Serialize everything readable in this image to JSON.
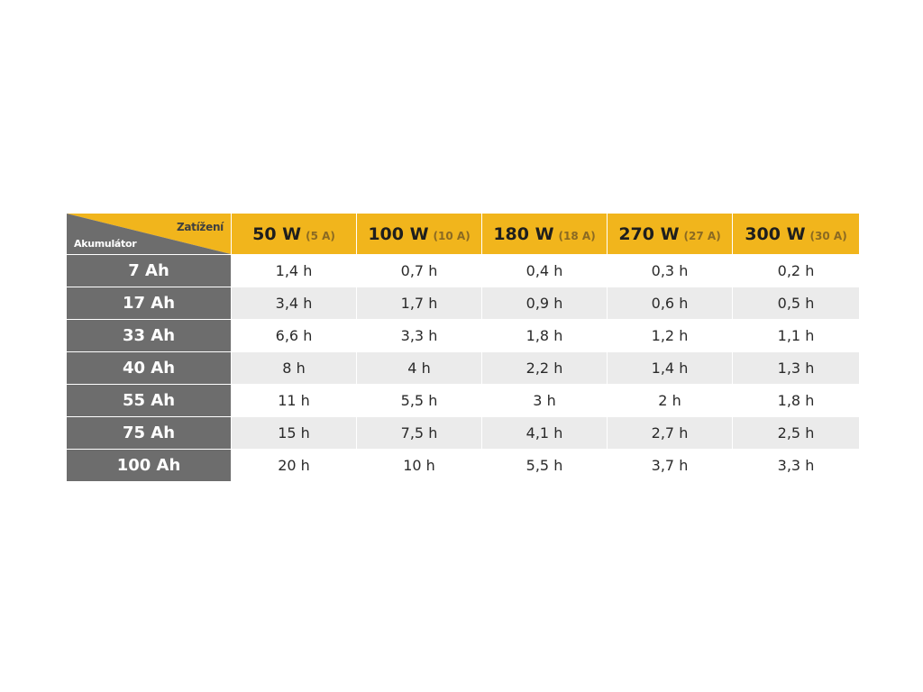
{
  "table": {
    "corner": {
      "top_label": "Zatížení",
      "bottom_label": "Akumulátor"
    },
    "columns": [
      {
        "watts": "50 W",
        "amps": "(5 A)"
      },
      {
        "watts": "100 W",
        "amps": "(10 A)"
      },
      {
        "watts": "180 W",
        "amps": "(18 A)"
      },
      {
        "watts": "270 W",
        "amps": "(27 A)"
      },
      {
        "watts": "300 W",
        "amps": "(30 A)"
      }
    ],
    "rows": [
      {
        "label": "7 Ah",
        "cells": [
          "1,4 h",
          "0,7 h",
          "0,4 h",
          "0,3 h",
          "0,2 h"
        ]
      },
      {
        "label": "17 Ah",
        "cells": [
          "3,4 h",
          "1,7 h",
          "0,9 h",
          "0,6 h",
          "0,5 h"
        ]
      },
      {
        "label": "33 Ah",
        "cells": [
          "6,6 h",
          "3,3 h",
          "1,8 h",
          "1,2 h",
          "1,1 h"
        ]
      },
      {
        "label": "40 Ah",
        "cells": [
          "8 h",
          "4 h",
          "2,2 h",
          "1,4 h",
          "1,3 h"
        ]
      },
      {
        "label": "55 Ah",
        "cells": [
          "11 h",
          "5,5 h",
          "3 h",
          "2 h",
          "1,8 h"
        ]
      },
      {
        "label": "75 Ah",
        "cells": [
          "15 h",
          "7,5 h",
          "4,1 h",
          "2,7 h",
          "2,5 h"
        ]
      },
      {
        "label": "100 Ah",
        "cells": [
          "20 h",
          "10 h",
          "5,5 h",
          "3,7 h",
          "3,3 h"
        ]
      }
    ]
  },
  "colors": {
    "header_yellow": "#f1b51c",
    "row_label_gray": "#6d6d6d",
    "stripe_gray": "#ebebeb"
  }
}
